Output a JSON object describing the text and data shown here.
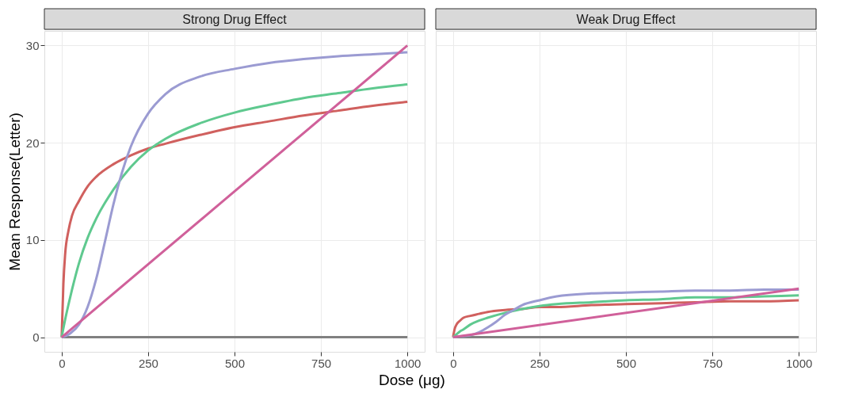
{
  "chart_data": [
    {
      "type": "line",
      "title": "Strong Drug Effect",
      "ylabel": "Mean Response(Letter)",
      "xlabel": "Dose (μg)",
      "xlim": [
        -50,
        1050
      ],
      "ylim": [
        -1.5,
        31.5
      ],
      "xticks": [
        0,
        250,
        500,
        750,
        1000
      ],
      "yticks": [
        0,
        10,
        20,
        30
      ],
      "grid": true,
      "legend": false,
      "marker": "none",
      "line_style": "solid",
      "series": [
        {
          "color": "#808080",
          "x": [
            0,
            1000
          ],
          "values": [
            0,
            0
          ]
        },
        {
          "color": "#d0605e",
          "x": [
            0,
            5,
            10,
            20,
            30,
            50,
            75,
            100,
            150,
            200,
            250,
            300,
            400,
            500,
            600,
            700,
            800,
            900,
            1000
          ],
          "values": [
            0,
            5.5,
            8.5,
            11,
            12.5,
            14,
            15.5,
            16.5,
            17.8,
            18.7,
            19.4,
            19.9,
            20.8,
            21.6,
            22.2,
            22.8,
            23.3,
            23.8,
            24.2
          ]
        },
        {
          "color": "#5fc98f",
          "x": [
            0,
            10,
            20,
            30,
            50,
            75,
            100,
            150,
            200,
            250,
            300,
            400,
            500,
            600,
            700,
            800,
            900,
            1000
          ],
          "values": [
            0,
            1.8,
            3.4,
            4.9,
            7.6,
            10.2,
            12.2,
            15.2,
            17.5,
            19.2,
            20.4,
            22,
            23.1,
            23.9,
            24.6,
            25.1,
            25.6,
            26
          ]
        },
        {
          "color": "#9b9bd2",
          "x": [
            0,
            25,
            50,
            75,
            100,
            125,
            150,
            175,
            200,
            250,
            300,
            400,
            500,
            600,
            700,
            800,
            900,
            1000
          ],
          "values": [
            0,
            0.4,
            1.3,
            3.1,
            6,
            9.8,
            13.7,
            17,
            19.6,
            23,
            25,
            26.8,
            27.6,
            28.2,
            28.6,
            28.9,
            29.1,
            29.3
          ]
        },
        {
          "color": "#d0609a",
          "x": [
            0,
            1000
          ],
          "values": [
            0,
            30
          ]
        }
      ]
    },
    {
      "type": "line",
      "title": "Weak Drug Effect",
      "xlim": [
        -50,
        1050
      ],
      "ylim": [
        -1.5,
        31.5
      ],
      "xticks": [
        0,
        250,
        500,
        750,
        1000
      ],
      "yticks": [
        0,
        10,
        20,
        30
      ],
      "tick_labels": "x",
      "grid": true,
      "legend": false,
      "marker": "none",
      "line_style": "solid",
      "series": [
        {
          "color": "#808080",
          "x": [
            0,
            1000
          ],
          "values": [
            0,
            0
          ]
        },
        {
          "color": "#d0605e",
          "x": [
            0,
            5,
            10,
            20,
            30,
            50,
            75,
            100,
            150,
            200,
            250,
            300,
            400,
            500,
            600,
            700,
            800,
            900,
            1000
          ],
          "values": [
            0,
            0.9,
            1.3,
            1.7,
            2,
            2.2,
            2.4,
            2.6,
            2.8,
            2.9,
            3.1,
            3.1,
            3.3,
            3.4,
            3.5,
            3.6,
            3.7,
            3.7,
            3.8
          ]
        },
        {
          "color": "#5fc98f",
          "x": [
            0,
            10,
            20,
            30,
            50,
            75,
            100,
            150,
            200,
            250,
            300,
            400,
            500,
            600,
            700,
            800,
            900,
            1000
          ],
          "values": [
            0,
            0.3,
            0.6,
            0.8,
            1.3,
            1.7,
            2,
            2.5,
            2.9,
            3.2,
            3.4,
            3.6,
            3.8,
            3.9,
            4.1,
            4.1,
            4.2,
            4.3
          ]
        },
        {
          "color": "#9b9bd2",
          "x": [
            0,
            25,
            50,
            75,
            100,
            125,
            150,
            175,
            200,
            250,
            300,
            400,
            500,
            600,
            700,
            800,
            900,
            1000
          ],
          "values": [
            0,
            0.1,
            0.2,
            0.5,
            1,
            1.6,
            2.3,
            2.8,
            3.3,
            3.8,
            4.2,
            4.5,
            4.6,
            4.7,
            4.8,
            4.8,
            4.9,
            4.9
          ]
        },
        {
          "color": "#d0609a",
          "x": [
            0,
            1000
          ],
          "values": [
            0,
            5
          ]
        }
      ]
    }
  ]
}
